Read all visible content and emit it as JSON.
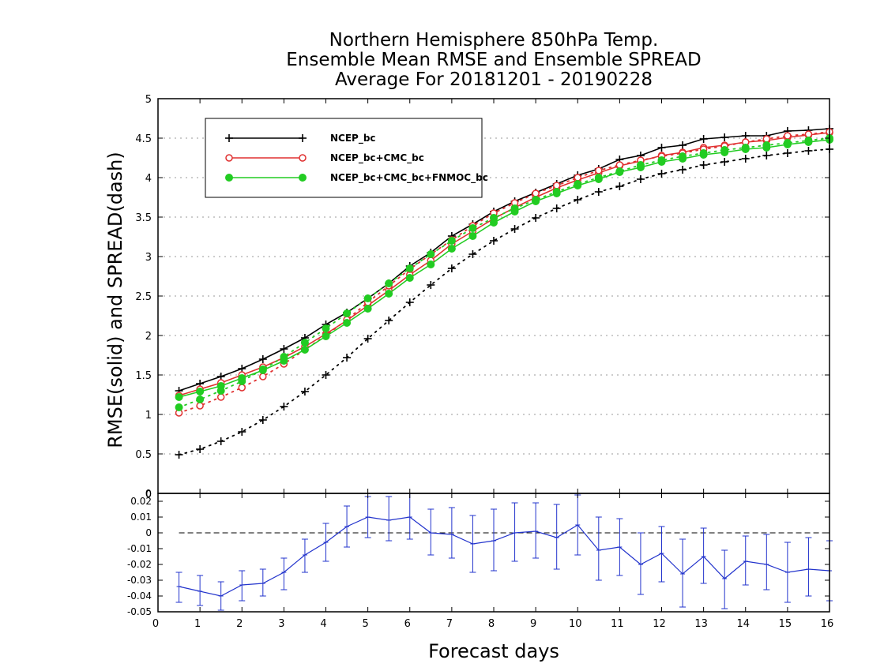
{
  "chart_data": [
    {
      "type": "line",
      "title": [
        "Northern Hemisphere 850hPa Temp.",
        "Ensemble Mean RMSE and Ensemble SPREAD",
        "Average For 20181201 - 20190228"
      ],
      "ylabel": "RMSE(solid) and SPREAD(dash)",
      "xlabel": "Forecast days",
      "xlim": [
        0,
        16
      ],
      "ylim": [
        0,
        5
      ],
      "yticks": [
        0,
        0.5,
        1,
        1.5,
        2,
        2.5,
        3,
        3.5,
        4,
        4.5,
        5
      ],
      "ytick_labels": [
        "0",
        "0.5",
        "1",
        "1.5",
        "2",
        "2.5",
        "3",
        "3.5",
        "4",
        "4.5",
        "5"
      ],
      "grid": "horizontal-dotted",
      "legend_position": "top-left",
      "x": [
        0.5,
        1,
        1.5,
        2,
        2.5,
        3,
        3.5,
        4,
        4.5,
        5,
        5.5,
        6,
        6.5,
        7,
        7.5,
        8,
        8.5,
        9,
        9.5,
        10,
        10.5,
        11,
        11.5,
        12,
        12.5,
        13,
        13.5,
        14,
        14.5,
        15,
        15.5,
        16
      ],
      "series": [
        {
          "name": "NCEP_bc",
          "metric": "RMSE",
          "style": "solid",
          "marker": "plus",
          "color": "#000000",
          "values": [
            1.3,
            1.39,
            1.48,
            1.58,
            1.7,
            1.83,
            1.97,
            2.14,
            2.29,
            2.47,
            2.66,
            2.88,
            3.05,
            3.26,
            3.41,
            3.57,
            3.7,
            3.81,
            3.92,
            4.03,
            4.11,
            4.23,
            4.28,
            4.38,
            4.41,
            4.49,
            4.51,
            4.53,
            4.53,
            4.59,
            4.6,
            4.62
          ]
        },
        {
          "name": "NCEP_bc",
          "metric": "SPREAD",
          "style": "dotted",
          "marker": "plus",
          "color": "#000000",
          "values": [
            0.49,
            0.56,
            0.66,
            0.78,
            0.93,
            1.1,
            1.29,
            1.5,
            1.72,
            1.96,
            2.19,
            2.42,
            2.64,
            2.85,
            3.03,
            3.2,
            3.35,
            3.49,
            3.61,
            3.72,
            3.82,
            3.89,
            3.98,
            4.05,
            4.1,
            4.16,
            4.2,
            4.24,
            4.28,
            4.31,
            4.34,
            4.36
          ]
        },
        {
          "name": "NCEP_bc+CMC_bc",
          "metric": "RMSE",
          "style": "solid",
          "marker": "open-circle",
          "color": "#e03030",
          "values": [
            1.24,
            1.32,
            1.4,
            1.5,
            1.6,
            1.72,
            1.86,
            2.02,
            2.19,
            2.38,
            2.57,
            2.77,
            2.95,
            3.16,
            3.32,
            3.48,
            3.62,
            3.75,
            3.87,
            3.97,
            4.06,
            4.15,
            4.21,
            4.28,
            4.32,
            4.38,
            4.41,
            4.45,
            4.47,
            4.51,
            4.54,
            4.57
          ]
        },
        {
          "name": "NCEP_bc+CMC_bc",
          "metric": "SPREAD",
          "style": "dotted",
          "marker": "open-circle",
          "color": "#e03030",
          "values": [
            1.02,
            1.11,
            1.22,
            1.34,
            1.48,
            1.64,
            1.82,
            2.0,
            2.2,
            2.42,
            2.63,
            2.84,
            3.03,
            3.21,
            3.39,
            3.55,
            3.68,
            3.8,
            3.9,
            4.0,
            4.09,
            4.16,
            4.22,
            4.27,
            4.31,
            4.36,
            4.4,
            4.45,
            4.49,
            4.53,
            4.55,
            4.58
          ]
        },
        {
          "name": "NCEP_bc+CMC_bc+FNMOC_bc",
          "metric": "RMSE",
          "style": "solid",
          "marker": "filled-circle",
          "color": "#22cc22",
          "values": [
            1.22,
            1.29,
            1.36,
            1.46,
            1.56,
            1.68,
            1.82,
            1.99,
            2.16,
            2.34,
            2.53,
            2.73,
            2.9,
            3.1,
            3.26,
            3.43,
            3.57,
            3.7,
            3.8,
            3.9,
            3.98,
            4.07,
            4.13,
            4.2,
            4.24,
            4.29,
            4.32,
            4.36,
            4.38,
            4.42,
            4.45,
            4.48
          ]
        },
        {
          "name": "NCEP_bc+CMC_bc+FNMOC_bc",
          "metric": "SPREAD",
          "style": "dotted",
          "marker": "filled-circle",
          "color": "#22cc22",
          "values": [
            1.09,
            1.19,
            1.3,
            1.42,
            1.57,
            1.73,
            1.91,
            2.09,
            2.28,
            2.47,
            2.66,
            2.85,
            3.03,
            3.2,
            3.36,
            3.49,
            3.61,
            3.72,
            3.82,
            3.92,
            4.0,
            4.08,
            4.16,
            4.22,
            4.27,
            4.31,
            4.35,
            4.38,
            4.41,
            4.44,
            4.47,
            4.5
          ]
        }
      ]
    },
    {
      "type": "line",
      "subtype": "errorbar",
      "xlabel": "Forecast days",
      "xlim": [
        0,
        16
      ],
      "xticks": [
        0,
        1,
        2,
        3,
        4,
        5,
        6,
        7,
        8,
        9,
        10,
        11,
        12,
        13,
        14,
        15,
        16
      ],
      "xtick_labels": [
        "0",
        "1",
        "2",
        "3",
        "4",
        "5",
        "6",
        "7",
        "8",
        "9",
        "10",
        "11",
        "12",
        "13",
        "14",
        "15",
        "16"
      ],
      "ylim": [
        -0.05,
        0.025
      ],
      "yticks": [
        0.02,
        0.01,
        0,
        -0.01,
        -0.02,
        -0.03,
        -0.04,
        -0.05
      ],
      "ytick_labels": [
        "0.02",
        "0.01",
        "0",
        "-0.01",
        "-0.02",
        "-0.03",
        "-0.04",
        "-0.05"
      ],
      "top_label": "0",
      "zero_line": "dashed",
      "color": "#2233cc",
      "x": [
        0.5,
        1,
        1.5,
        2,
        2.5,
        3,
        3.5,
        4,
        4.5,
        5,
        5.5,
        6,
        6.5,
        7,
        7.5,
        8,
        8.5,
        9,
        9.5,
        10,
        10.5,
        11,
        11.5,
        12,
        12.5,
        13,
        13.5,
        14,
        14.5,
        15,
        15.5,
        16
      ],
      "values": [
        -0.034,
        -0.037,
        -0.04,
        -0.033,
        -0.032,
        -0.025,
        -0.014,
        -0.006,
        0.004,
        0.01,
        0.008,
        0.01,
        0.0,
        -0.001,
        -0.007,
        -0.005,
        0.0,
        0.001,
        -0.003,
        0.005,
        -0.011,
        -0.009,
        -0.02,
        -0.013,
        -0.026,
        -0.015,
        -0.029,
        -0.018,
        -0.02,
        -0.025,
        -0.023,
        -0.024
      ],
      "err_low": [
        -0.044,
        -0.046,
        -0.049,
        -0.043,
        -0.04,
        -0.036,
        -0.025,
        -0.018,
        -0.009,
        -0.003,
        -0.005,
        -0.004,
        -0.014,
        -0.016,
        -0.025,
        -0.024,
        -0.018,
        -0.016,
        -0.023,
        -0.014,
        -0.03,
        -0.027,
        -0.039,
        -0.031,
        -0.047,
        -0.032,
        -0.048,
        -0.033,
        -0.036,
        -0.044,
        -0.04,
        -0.043
      ],
      "err_high": [
        -0.025,
        -0.027,
        -0.031,
        -0.024,
        -0.023,
        -0.016,
        -0.004,
        0.006,
        0.017,
        0.023,
        0.023,
        0.026,
        0.015,
        0.016,
        0.011,
        0.015,
        0.019,
        0.019,
        0.018,
        0.024,
        0.01,
        0.009,
        0.0,
        0.004,
        -0.004,
        0.003,
        -0.011,
        -0.002,
        -0.001,
        -0.006,
        -0.003,
        -0.005
      ]
    }
  ],
  "legend": {
    "entries": [
      "NCEP_bc",
      "NCEP_bc+CMC_bc",
      "NCEP_bc+CMC_bc+FNMOC_bc"
    ]
  }
}
